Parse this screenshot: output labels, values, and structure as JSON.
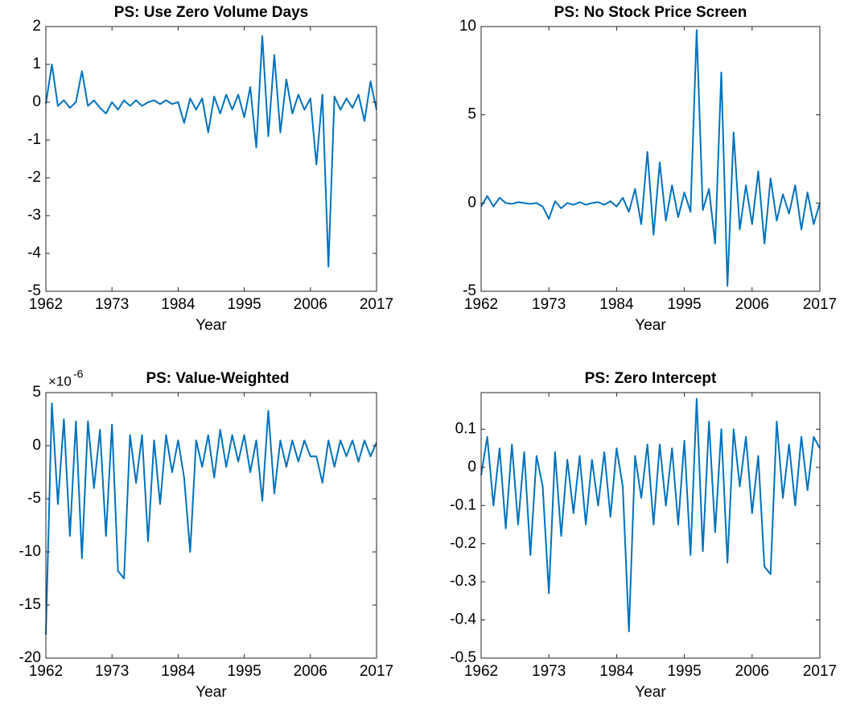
{
  "chart_data": [
    {
      "type": "line",
      "title": "PS: Use Zero Volume Days",
      "xlabel": "Year",
      "color": "#0072bd",
      "x": [
        1962,
        1963,
        1964,
        1965,
        1966,
        1967,
        1968,
        1969,
        1970,
        1971,
        1972,
        1973,
        1974,
        1975,
        1976,
        1977,
        1978,
        1979,
        1980,
        1981,
        1982,
        1983,
        1984,
        1985,
        1986,
        1987,
        1988,
        1989,
        1990,
        1991,
        1992,
        1993,
        1994,
        1995,
        1996,
        1997,
        1998,
        1999,
        2000,
        2001,
        2002,
        2003,
        2004,
        2005,
        2006,
        2007,
        2008,
        2009,
        2010,
        2011,
        2012,
        2013,
        2014,
        2015,
        2016,
        2017
      ],
      "values": [
        -0.05,
        1.0,
        -0.1,
        0.05,
        -0.15,
        0.0,
        0.82,
        -0.1,
        0.05,
        -0.15,
        -0.3,
        0.0,
        -0.2,
        0.05,
        -0.1,
        0.05,
        -0.1,
        0.0,
        0.05,
        -0.05,
        0.05,
        -0.05,
        0.0,
        -0.55,
        0.1,
        -0.2,
        0.1,
        -0.8,
        0.15,
        -0.3,
        0.2,
        -0.2,
        0.2,
        -0.4,
        0.4,
        -1.2,
        1.75,
        -0.9,
        1.25,
        -0.8,
        0.6,
        -0.3,
        0.2,
        -0.2,
        0.1,
        -1.65,
        0.2,
        -4.35,
        0.15,
        -0.2,
        0.1,
        -0.15,
        0.2,
        -0.5,
        0.55,
        -0.2
      ],
      "xlim": [
        1962,
        2017
      ],
      "xticks": [
        1962,
        1973,
        1984,
        1995,
        2006,
        2017
      ],
      "ylim": [
        -5,
        2
      ],
      "yticks": [
        -5,
        -4,
        -3,
        -2,
        -1,
        0,
        1,
        2
      ]
    },
    {
      "type": "line",
      "title": "PS: No Stock Price Screen",
      "xlabel": "Year",
      "color": "#0072bd",
      "x": [
        1962,
        1963,
        1964,
        1965,
        1966,
        1967,
        1968,
        1969,
        1970,
        1971,
        1972,
        1973,
        1974,
        1975,
        1976,
        1977,
        1978,
        1979,
        1980,
        1981,
        1982,
        1983,
        1984,
        1985,
        1986,
        1987,
        1988,
        1989,
        1990,
        1991,
        1992,
        1993,
        1994,
        1995,
        1996,
        1997,
        1998,
        1999,
        2000,
        2001,
        2002,
        2003,
        2004,
        2005,
        2006,
        2007,
        2008,
        2009,
        2010,
        2011,
        2012,
        2013,
        2014,
        2015,
        2016,
        2017
      ],
      "values": [
        -0.2,
        0.4,
        -0.2,
        0.3,
        0.0,
        -0.05,
        0.05,
        0.0,
        -0.05,
        0.0,
        -0.2,
        -0.9,
        0.1,
        -0.3,
        0.0,
        -0.1,
        0.05,
        -0.1,
        0.0,
        0.05,
        -0.1,
        0.1,
        -0.2,
        0.3,
        -0.5,
        0.8,
        -1.2,
        2.9,
        -1.8,
        2.3,
        -1.0,
        1.0,
        -0.8,
        0.6,
        -0.5,
        9.8,
        -0.4,
        0.8,
        -2.3,
        7.4,
        -4.7,
        4.0,
        -1.5,
        1.0,
        -1.2,
        1.8,
        -2.3,
        1.4,
        -1.0,
        0.5,
        -0.6,
        1.0,
        -1.5,
        0.6,
        -1.2,
        0.0
      ],
      "xlim": [
        1962,
        2017
      ],
      "xticks": [
        1962,
        1973,
        1984,
        1995,
        2006,
        2017
      ],
      "ylim": [
        -5,
        10
      ],
      "yticks": [
        -5,
        0,
        5,
        10
      ]
    },
    {
      "type": "line",
      "title": "PS: Value-Weighted",
      "xlabel": "Year",
      "color": "#0072bd",
      "y_multiplier": {
        "base": "×10",
        "exponent": "-6"
      },
      "x": [
        1962,
        1963,
        1964,
        1965,
        1966,
        1967,
        1968,
        1969,
        1970,
        1971,
        1972,
        1973,
        1974,
        1975,
        1976,
        1977,
        1978,
        1979,
        1980,
        1981,
        1982,
        1983,
        1984,
        1985,
        1986,
        1987,
        1988,
        1989,
        1990,
        1991,
        1992,
        1993,
        1994,
        1995,
        1996,
        1997,
        1998,
        1999,
        2000,
        2001,
        2002,
        2003,
        2004,
        2005,
        2006,
        2007,
        2008,
        2009,
        2010,
        2011,
        2012,
        2013,
        2014,
        2015,
        2016,
        2017
      ],
      "values": [
        -17.8,
        4.0,
        -5.5,
        2.5,
        -8.5,
        2.3,
        -10.6,
        2.3,
        -4.0,
        1.5,
        -8.5,
        2.0,
        -11.8,
        -12.5,
        1.0,
        -3.5,
        1.0,
        -9.0,
        0.5,
        -5.5,
        1.0,
        -2.5,
        0.5,
        -3.0,
        -10.0,
        0.5,
        -2.0,
        1.0,
        -3.0,
        1.5,
        -2.0,
        1.0,
        -1.5,
        1.0,
        -2.5,
        0.5,
        -5.2,
        3.3,
        -4.5,
        0.5,
        -2.0,
        0.5,
        -1.5,
        0.5,
        -1.0,
        -1.0,
        -3.5,
        0.5,
        -2.0,
        0.5,
        -1.0,
        0.5,
        -1.5,
        0.5,
        -1.0,
        0.3
      ],
      "xlim": [
        1962,
        2017
      ],
      "xticks": [
        1962,
        1973,
        1984,
        1995,
        2006,
        2017
      ],
      "ylim": [
        -20,
        5
      ],
      "yticks": [
        -20,
        -15,
        -10,
        -5,
        0,
        5
      ]
    },
    {
      "type": "line",
      "title": "PS: Zero Intercept",
      "xlabel": "Year",
      "color": "#0072bd",
      "x": [
        1962,
        1963,
        1964,
        1965,
        1966,
        1967,
        1968,
        1969,
        1970,
        1971,
        1972,
        1973,
        1974,
        1975,
        1976,
        1977,
        1978,
        1979,
        1980,
        1981,
        1982,
        1983,
        1984,
        1985,
        1986,
        1987,
        1988,
        1989,
        1990,
        1991,
        1992,
        1993,
        1994,
        1995,
        1996,
        1997,
        1998,
        1999,
        2000,
        2001,
        2002,
        2003,
        2004,
        2005,
        2006,
        2007,
        2008,
        2009,
        2010,
        2011,
        2012,
        2013,
        2014,
        2015,
        2016,
        2017
      ],
      "values": [
        -0.02,
        0.08,
        -0.1,
        0.05,
        -0.16,
        0.06,
        -0.15,
        0.04,
        -0.23,
        0.03,
        -0.05,
        -0.33,
        0.04,
        -0.18,
        0.02,
        -0.12,
        0.03,
        -0.15,
        0.02,
        -0.1,
        0.04,
        -0.13,
        0.05,
        -0.05,
        -0.43,
        0.03,
        -0.08,
        0.06,
        -0.15,
        0.06,
        -0.1,
        0.05,
        -0.15,
        0.07,
        -0.23,
        0.18,
        -0.22,
        0.12,
        -0.17,
        0.1,
        -0.25,
        0.1,
        -0.05,
        0.08,
        -0.12,
        0.03,
        -0.26,
        -0.28,
        0.12,
        -0.08,
        0.06,
        -0.1,
        0.08,
        -0.06,
        0.08,
        0.05
      ],
      "xlim": [
        1962,
        2017
      ],
      "xticks": [
        1962,
        1973,
        1984,
        1995,
        2006,
        2017
      ],
      "ylim": [
        -0.5,
        0.196
      ],
      "yticks": [
        -0.5,
        -0.4,
        -0.3,
        -0.2,
        -0.1,
        0,
        0.1
      ]
    }
  ]
}
